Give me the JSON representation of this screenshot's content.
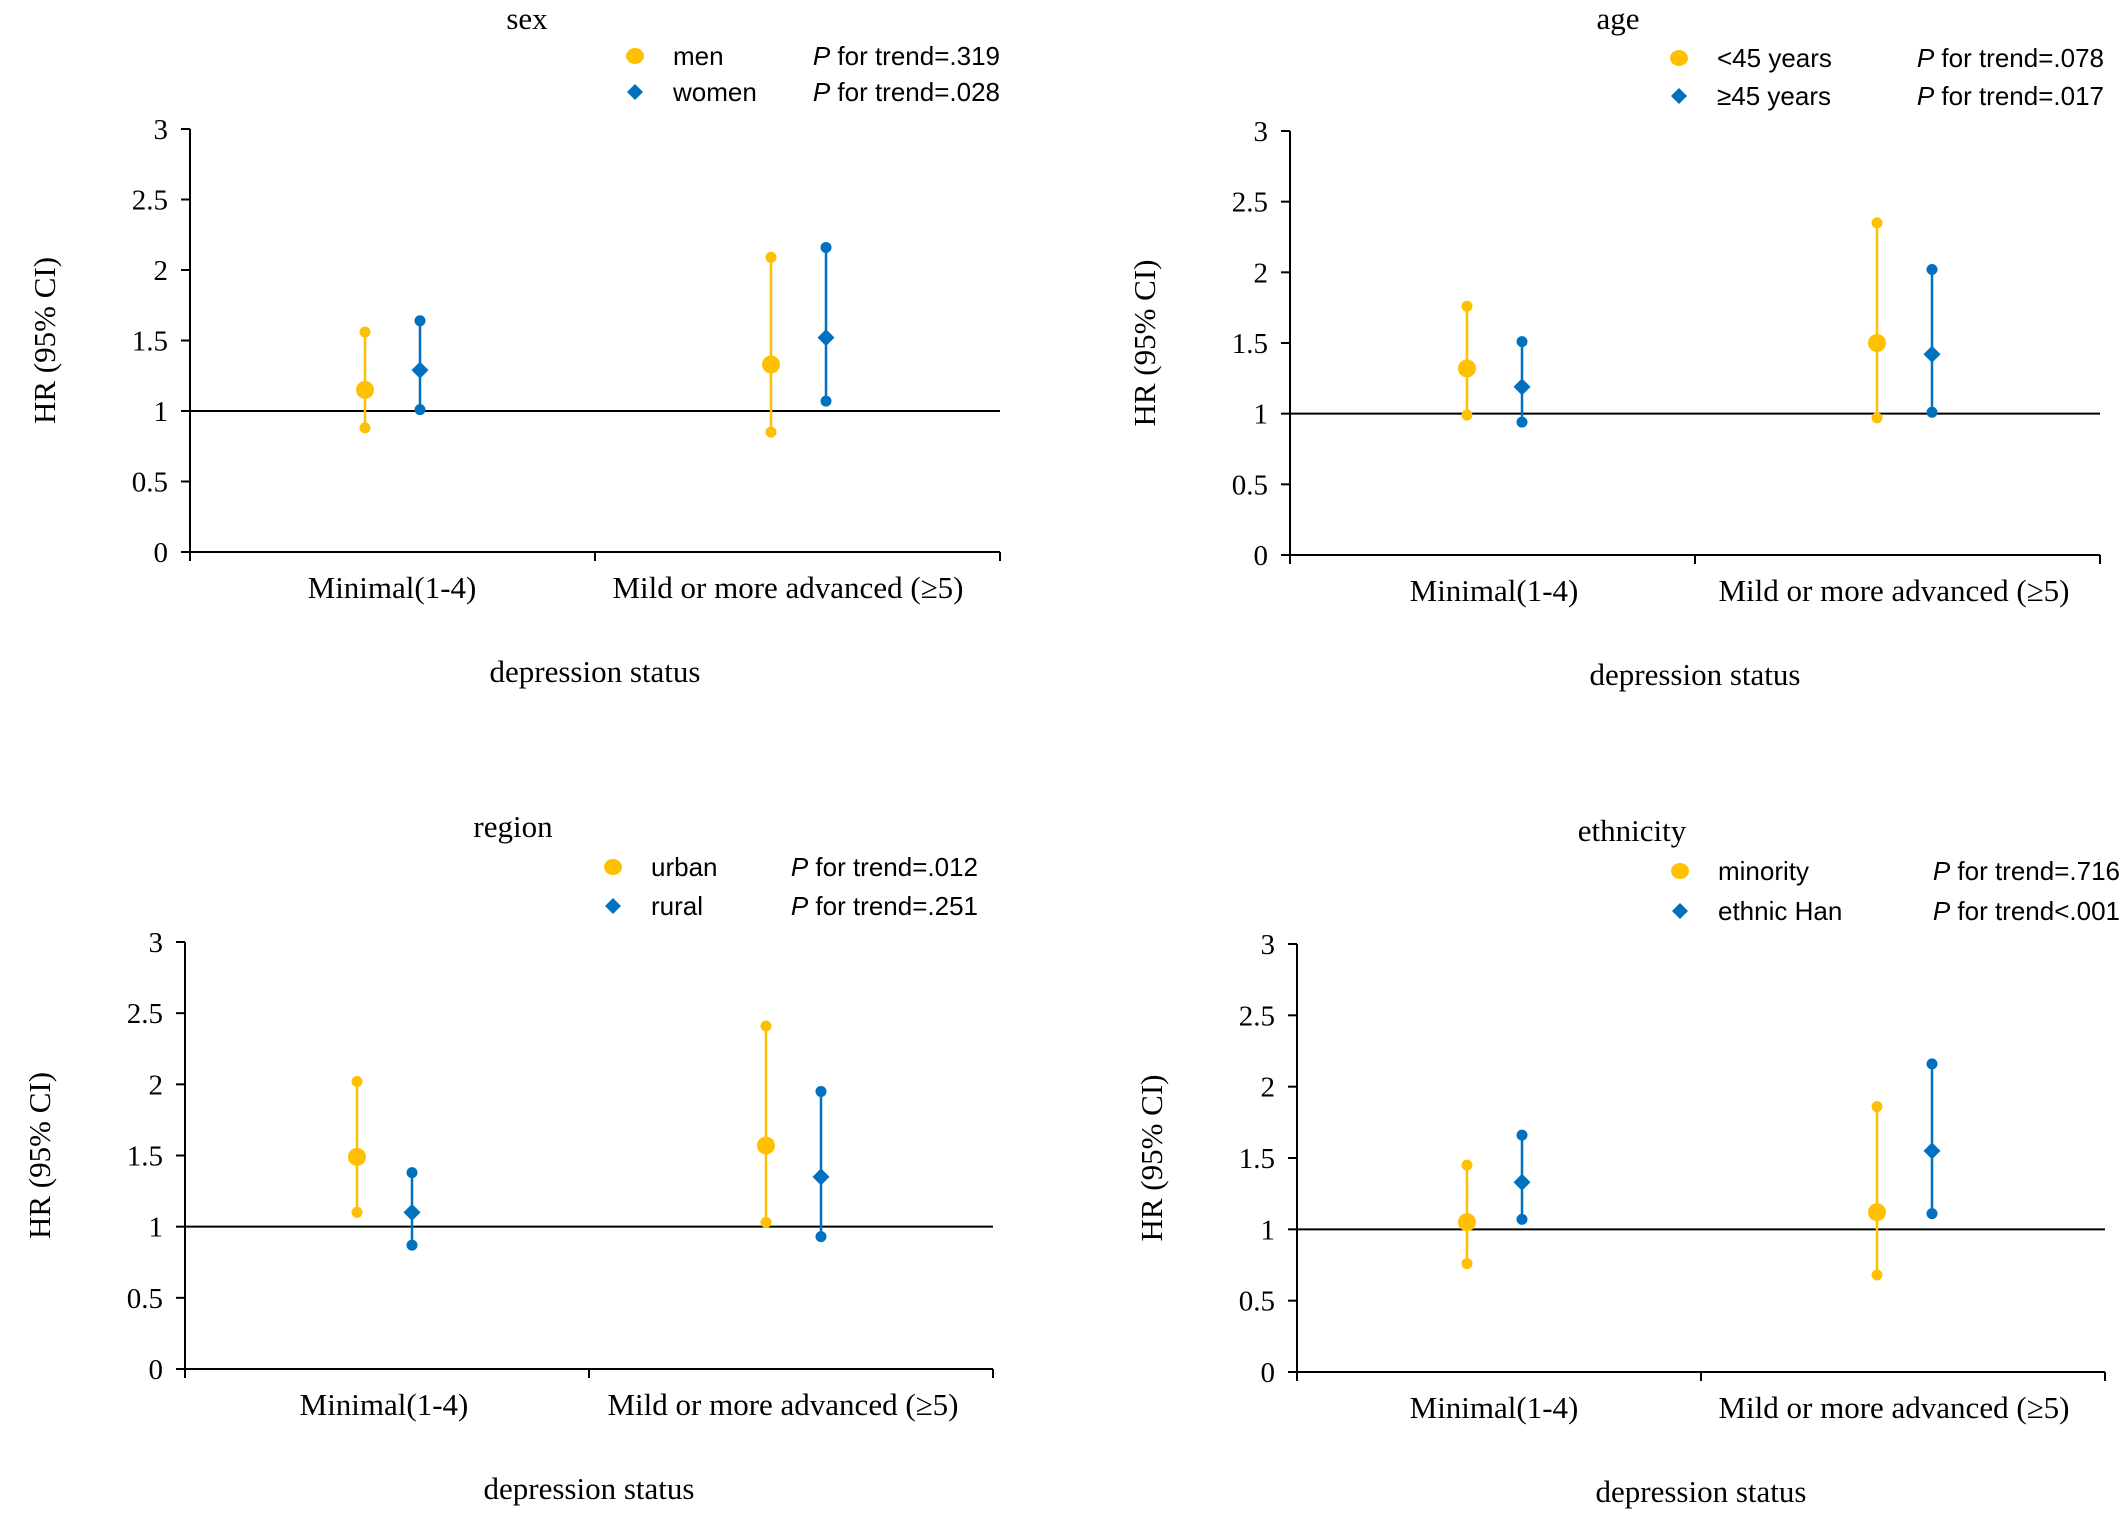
{
  "chart_data": [
    {
      "type": "scatter",
      "title": "sex",
      "xlabel": "depression status",
      "ylabel": "HR (95% CI)",
      "categories": [
        "Minimal(1-4)",
        "Mild or more advanced (≥5)"
      ],
      "ylim": [
        0,
        3
      ],
      "yticks": [
        "0",
        "0.5",
        "1",
        "1.5",
        "2",
        "2.5",
        "3"
      ],
      "reference_line": 1,
      "legend_position": "top-right",
      "series": [
        {
          "name": "men",
          "p_label": "P",
          "p_text": " for trend=.319",
          "color": "#FFC000",
          "marker": "circle",
          "points": [
            {
              "hr": 1.15,
              "lower": 0.88,
              "upper": 1.56
            },
            {
              "hr": 1.33,
              "lower": 0.85,
              "upper": 2.09
            }
          ]
        },
        {
          "name": "women",
          "p_label": "P",
          "p_text": " for trend=.028",
          "color": "#0070C0",
          "marker": "diamond",
          "points": [
            {
              "hr": 1.29,
              "lower": 1.01,
              "upper": 1.64
            },
            {
              "hr": 1.52,
              "lower": 1.07,
              "upper": 2.16
            }
          ]
        }
      ]
    },
    {
      "type": "scatter",
      "title": "age",
      "xlabel": "depression status",
      "ylabel": "HR (95% CI)",
      "categories": [
        "Minimal(1-4)",
        "Mild or more advanced (≥5)"
      ],
      "ylim": [
        0,
        3
      ],
      "yticks": [
        "0",
        "0.5",
        "1",
        "1.5",
        "2",
        "2.5",
        "3"
      ],
      "reference_line": 1,
      "legend_position": "top-right",
      "series": [
        {
          "name": "<45 years",
          "p_label": "P",
          "p_text": " for trend=.078",
          "color": "#FFC000",
          "marker": "circle",
          "points": [
            {
              "hr": 1.32,
              "lower": 0.99,
              "upper": 1.76
            },
            {
              "hr": 1.5,
              "lower": 0.97,
              "upper": 2.35
            }
          ]
        },
        {
          "name": "≥45 years",
          "p_label": "P",
          "p_text": " for trend=.017",
          "color": "#0070C0",
          "marker": "diamond",
          "points": [
            {
              "hr": 1.19,
              "lower": 0.94,
              "upper": 1.51
            },
            {
              "hr": 1.42,
              "lower": 1.01,
              "upper": 2.02
            }
          ]
        }
      ]
    },
    {
      "type": "scatter",
      "title": "region",
      "xlabel": "depression status",
      "ylabel": "HR (95% CI)",
      "categories": [
        "Minimal(1-4)",
        "Mild or more advanced (≥5)"
      ],
      "ylim": [
        0,
        3
      ],
      "yticks": [
        "0",
        "0.5",
        "1",
        "1.5",
        "2",
        "2.5",
        "3"
      ],
      "reference_line": 1,
      "legend_position": "top-right",
      "series": [
        {
          "name": "urban",
          "p_label": "P",
          "p_text": " for trend=.012",
          "color": "#FFC000",
          "marker": "circle",
          "points": [
            {
              "hr": 1.49,
              "lower": 1.1,
              "upper": 2.02
            },
            {
              "hr": 1.57,
              "lower": 1.03,
              "upper": 2.41
            }
          ]
        },
        {
          "name": "rural",
          "p_label": "P",
          "p_text": " for trend=.251",
          "color": "#0070C0",
          "marker": "diamond",
          "points": [
            {
              "hr": 1.1,
              "lower": 0.87,
              "upper": 1.38
            },
            {
              "hr": 1.35,
              "lower": 0.93,
              "upper": 1.95
            }
          ]
        }
      ]
    },
    {
      "type": "scatter",
      "title": "ethnicity",
      "xlabel": "depression status",
      "ylabel": "HR (95% CI)",
      "categories": [
        "Minimal(1-4)",
        "Mild or more advanced (≥5)"
      ],
      "ylim": [
        0,
        3
      ],
      "yticks": [
        "0",
        "0.5",
        "1",
        "1.5",
        "2",
        "2.5",
        "3"
      ],
      "reference_line": 1,
      "legend_position": "top-right",
      "series": [
        {
          "name": "minority",
          "p_label": "P",
          "p_text": " for trend=.716",
          "color": "#FFC000",
          "marker": "circle",
          "points": [
            {
              "hr": 1.05,
              "lower": 0.76,
              "upper": 1.45
            },
            {
              "hr": 1.12,
              "lower": 0.68,
              "upper": 1.86
            }
          ]
        },
        {
          "name": "ethnic Han",
          "p_label": "P",
          "p_text": " for trend<.001",
          "color": "#0070C0",
          "marker": "diamond",
          "points": [
            {
              "hr": 1.33,
              "lower": 1.07,
              "upper": 1.66
            },
            {
              "hr": 1.55,
              "lower": 1.11,
              "upper": 2.16
            }
          ]
        }
      ]
    }
  ]
}
